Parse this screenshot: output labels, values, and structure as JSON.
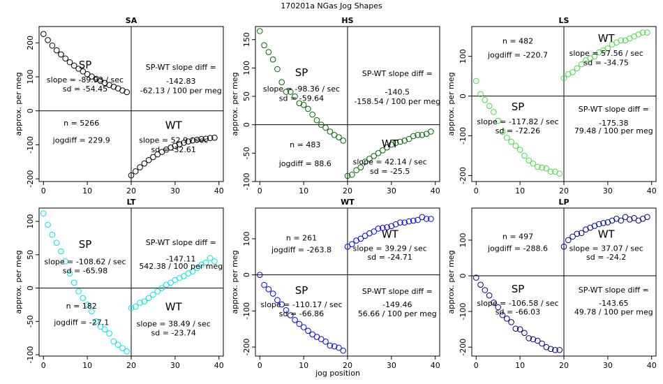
{
  "figure": {
    "main_title": "170201a   NGas Jog Shapes",
    "xlabel": "jog position"
  },
  "chart_data": [
    {
      "type": "scatter",
      "title": "SA",
      "color": "#000000",
      "xlabel": "",
      "ylabel": "approx. per meg",
      "xlim": [
        -1,
        41
      ],
      "ylim": [
        -208,
        248
      ],
      "xticks": [
        0,
        10,
        20,
        30,
        40
      ],
      "yticks": [
        -200,
        -100,
        0,
        100,
        200
      ],
      "vline": 20,
      "hline": 0,
      "series": [
        {
          "name": "SP",
          "x": [
            0,
            1,
            2,
            3,
            4,
            5,
            6,
            7,
            8,
            9,
            10,
            11,
            12,
            13,
            14,
            15,
            16,
            17,
            18,
            19
          ],
          "y": [
            226,
            208,
            192,
            178,
            166,
            154,
            143,
            133,
            124,
            116,
            108,
            101,
            94,
            88,
            82,
            76,
            71,
            66,
            60,
            55
          ]
        },
        {
          "name": "WT",
          "x": [
            20,
            21,
            22,
            23,
            24,
            25,
            26,
            27,
            28,
            29,
            30,
            31,
            32,
            33,
            34,
            35,
            36,
            37,
            38,
            39
          ],
          "y": [
            -190,
            -178,
            -166,
            -155,
            -145,
            -136,
            -128,
            -121,
            -114,
            -108,
            -103,
            -98,
            -94,
            -90,
            -87,
            -85,
            -83,
            -82,
            -80,
            -79
          ]
        }
      ],
      "annotations": {
        "sp_label": "SP",
        "sp_slope": "slope = -89.93 / sec",
        "sp_sd": "sd = -54.45",
        "wt_label": "WT",
        "wt_slope": "slope = 52.9 / sec",
        "wt_sd": "sd = -32.61",
        "n": "n = 5266",
        "jogdiff": "jogdiff = 229.9",
        "diff_title": "SP-WT slope diff =",
        "diff_value": "-142.83",
        "diff_per_meg": "-62.13 / 100 per meg"
      }
    },
    {
      "type": "scatter",
      "title": "HS",
      "color": "#006400",
      "xlabel": "",
      "ylabel": "approx. per meg",
      "xlim": [
        -1,
        41
      ],
      "ylim": [
        -100,
        173
      ],
      "xticks": [
        0,
        10,
        20,
        30,
        40
      ],
      "yticks": [
        -100,
        -50,
        0,
        50,
        100,
        150
      ],
      "vline": 20,
      "hline": 0,
      "series": [
        {
          "name": "SP",
          "x": [
            0,
            1,
            2,
            3,
            4,
            5,
            6,
            7,
            8,
            9,
            10,
            11,
            12,
            13,
            14,
            15,
            16,
            17,
            18,
            19
          ],
          "y": [
            165,
            140,
            128,
            115,
            98,
            75,
            58,
            58,
            50,
            38,
            35,
            28,
            18,
            8,
            0,
            -5,
            -12,
            -18,
            -22,
            -28
          ]
        },
        {
          "name": "WT",
          "x": [
            20,
            21,
            22,
            23,
            24,
            25,
            26,
            27,
            28,
            29,
            30,
            31,
            32,
            33,
            34,
            35,
            36,
            37,
            38,
            39
          ],
          "y": [
            -90,
            -88,
            -80,
            -75,
            -65,
            -60,
            -55,
            -50,
            -45,
            -40,
            -35,
            -32,
            -30,
            -28,
            -25,
            -20,
            -18,
            -18,
            -16,
            -12
          ]
        }
      ],
      "annotations": {
        "sp_label": "SP",
        "sp_slope": "slope = -98.36 / sec",
        "sp_sd": "sd = -59.64",
        "wt_label": "WT",
        "wt_slope": "slope = 42.14 / sec",
        "wt_sd": "sd = -25.5",
        "n": "n = 483",
        "jogdiff": "jogdiff = 88.6",
        "diff_title": "SP-WT slope diff =",
        "diff_value": "-140.5",
        "diff_per_meg": "-158.54 / 100 per meg"
      }
    },
    {
      "type": "scatter",
      "title": "LS",
      "color": "#44dd44",
      "xlabel": "",
      "ylabel": "approx. per meg",
      "xlim": [
        -1,
        41
      ],
      "ylim": [
        -215,
        175
      ],
      "xticks": [
        0,
        10,
        20,
        30,
        40
      ],
      "yticks": [
        -200,
        -100,
        0,
        100
      ],
      "vline": 20,
      "hline": 0,
      "series": [
        {
          "name": "SP",
          "x": [
            0,
            1,
            2,
            3,
            4,
            5,
            6,
            7,
            8,
            9,
            10,
            11,
            12,
            13,
            14,
            15,
            16,
            17,
            18,
            19
          ],
          "y": [
            38,
            5,
            -10,
            -25,
            -40,
            -62,
            -90,
            -105,
            -115,
            -125,
            -135,
            -150,
            -162,
            -170,
            -178,
            -180,
            -182,
            -190,
            -190,
            -195
          ]
        },
        {
          "name": "WT",
          "x": [
            20,
            21,
            22,
            23,
            24,
            25,
            26,
            27,
            28,
            29,
            30,
            31,
            32,
            33,
            34,
            35,
            36,
            37,
            38,
            39
          ],
          "y": [
            45,
            55,
            60,
            70,
            80,
            90,
            95,
            100,
            110,
            115,
            120,
            130,
            135,
            140,
            140,
            145,
            150,
            155,
            160,
            160
          ]
        }
      ],
      "annotations": {
        "sp_label": "SP",
        "sp_slope": "slope = -117.82 / sec",
        "sp_sd": "sd = -72.26",
        "wt_label": "WT",
        "wt_slope": "slope = 57.56 / sec",
        "wt_sd": "sd = -34.75",
        "n": "n = 482",
        "jogdiff": "jogdiff = -220.7",
        "diff_title": "SP-WT slope diff =",
        "diff_value": "-175.38",
        "diff_per_meg": "79.48 / 100 per meg"
      }
    },
    {
      "type": "scatter",
      "title": "LT",
      "color": "#00e5ee",
      "xlabel": "",
      "ylabel": "approx. per meg",
      "xlim": [
        -1,
        41
      ],
      "ylim": [
        -102,
        120
      ],
      "xticks": [
        0,
        10,
        20,
        30,
        40
      ],
      "yticks": [
        -100,
        -50,
        0,
        50,
        100
      ],
      "vline": 20,
      "hline": 0,
      "series": [
        {
          "name": "SP",
          "x": [
            0,
            1,
            2,
            3,
            4,
            5,
            6,
            7,
            8,
            9,
            10,
            11,
            12,
            13,
            14,
            15,
            16,
            17,
            18,
            19
          ],
          "y": [
            112,
            95,
            80,
            68,
            55,
            40,
            22,
            8,
            -5,
            -15,
            -25,
            -35,
            -50,
            -58,
            -62,
            -68,
            -80,
            -85,
            -90,
            -95
          ]
        },
        {
          "name": "WT",
          "x": [
            20,
            21,
            22,
            23,
            24,
            25,
            26,
            27,
            28,
            29,
            30,
            31,
            32,
            33,
            34,
            35,
            36,
            37,
            38,
            39
          ],
          "y": [
            -30,
            -28,
            -22,
            -20,
            -15,
            -10,
            -5,
            0,
            5,
            8,
            12,
            15,
            18,
            22,
            25,
            30,
            35,
            38,
            45,
            40
          ]
        }
      ],
      "annotations": {
        "sp_label": "SP",
        "sp_slope": "slope = -108.62 / sec",
        "sp_sd": "sd = -65.98",
        "wt_label": "WT",
        "wt_slope": "slope = 38.49 / sec",
        "wt_sd": "sd = -23.74",
        "n": "n = 182",
        "jogdiff": "jogdiff = -27.1",
        "diff_title": "SP-WT slope diff =",
        "diff_value": "-147.11",
        "diff_per_meg": "542.38 / 100 per meg"
      }
    },
    {
      "type": "scatter",
      "title": "WT",
      "color": "#0000ee",
      "xlabel": "jog position",
      "ylabel": "approx. per meg",
      "xlim": [
        -1,
        41
      ],
      "ylim": [
        -225,
        185
      ],
      "xticks": [
        0,
        10,
        20,
        30,
        40
      ],
      "yticks": [
        -200,
        -100,
        0,
        100
      ],
      "vline": 20,
      "hline": 0,
      "series": [
        {
          "name": "SP",
          "x": [
            0,
            1,
            2,
            3,
            4,
            5,
            6,
            7,
            8,
            9,
            10,
            11,
            12,
            13,
            14,
            15,
            16,
            17,
            18,
            19
          ],
          "y": [
            0,
            -28,
            -40,
            -52,
            -70,
            -82,
            -98,
            -112,
            -125,
            -136,
            -145,
            -155,
            -165,
            -172,
            -178,
            -185,
            -196,
            -198,
            -202,
            -210
          ]
        },
        {
          "name": "WT",
          "x": [
            20,
            21,
            22,
            23,
            24,
            25,
            26,
            27,
            28,
            29,
            30,
            31,
            32,
            33,
            34,
            35,
            36,
            37,
            38,
            39
          ],
          "y": [
            78,
            85,
            95,
            100,
            108,
            115,
            120,
            128,
            130,
            132,
            135,
            140,
            145,
            145,
            148,
            150,
            152,
            160,
            155,
            155
          ]
        }
      ],
      "annotations": {
        "sp_label": "SP",
        "sp_slope": "slope = -110.17 / sec",
        "sp_sd": "sd = -66.86",
        "wt_label": "WT",
        "wt_slope": "slope = 39.29 / sec",
        "wt_sd": "sd = -24.71",
        "n": "n = 261",
        "jogdiff": "jogdiff = -263.8",
        "diff_title": "SP-WT slope diff =",
        "diff_value": "-149.46",
        "diff_per_meg": "56.66 / 100 per meg"
      }
    },
    {
      "type": "scatter",
      "title": "LP",
      "color": "#00008b",
      "xlabel": "",
      "ylabel": "approx. per meg",
      "xlim": [
        -1,
        41
      ],
      "ylim": [
        -225,
        190
      ],
      "xticks": [
        0,
        10,
        20,
        30,
        40
      ],
      "yticks": [
        -200,
        -100,
        0,
        100
      ],
      "vline": 20,
      "hline": 0,
      "series": [
        {
          "name": "SP",
          "x": [
            0,
            1,
            2,
            3,
            4,
            5,
            6,
            7,
            8,
            9,
            10,
            11,
            12,
            13,
            14,
            15,
            16,
            17,
            18,
            19
          ],
          "y": [
            -5,
            -25,
            -40,
            -55,
            -75,
            -88,
            -110,
            -120,
            -130,
            -148,
            -150,
            -160,
            -175,
            -178,
            -182,
            -190,
            -200,
            -205,
            -208,
            -208
          ]
        },
        {
          "name": "WT",
          "x": [
            20,
            21,
            22,
            23,
            24,
            25,
            26,
            27,
            28,
            29,
            30,
            31,
            32,
            33,
            34,
            35,
            36,
            37,
            38,
            39
          ],
          "y": [
            82,
            100,
            110,
            118,
            120,
            130,
            135,
            140,
            145,
            148,
            150,
            155,
            160,
            155,
            165,
            158,
            162,
            155,
            160,
            165
          ]
        }
      ],
      "annotations": {
        "sp_label": "SP",
        "sp_slope": "slope = -106.58 / sec",
        "sp_sd": "sd = -66.03",
        "wt_label": "WT",
        "wt_slope": "slope = 37.07 / sec",
        "wt_sd": "sd = -24.2",
        "n": "n = 497",
        "jogdiff": "jogdiff = -288.6",
        "diff_title": "SP-WT slope diff =",
        "diff_value": "-143.65",
        "diff_per_meg": "49.78 / 100 per meg"
      }
    }
  ]
}
